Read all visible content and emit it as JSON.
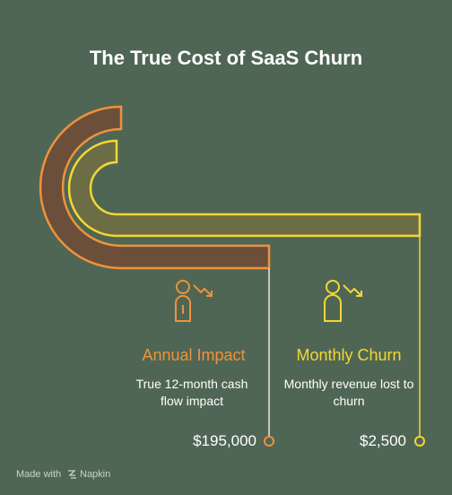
{
  "title": "The True Cost of SaaS Churn",
  "items": [
    {
      "title": "Annual Impact",
      "description": "True 12-month cash flow impact",
      "value": "$195,000"
    },
    {
      "title": "Monthly Churn",
      "description": "Monthly revenue lost to churn",
      "value": "$2,500"
    }
  ],
  "footer": {
    "prefix": "Made with",
    "brand": "Napkin"
  }
}
